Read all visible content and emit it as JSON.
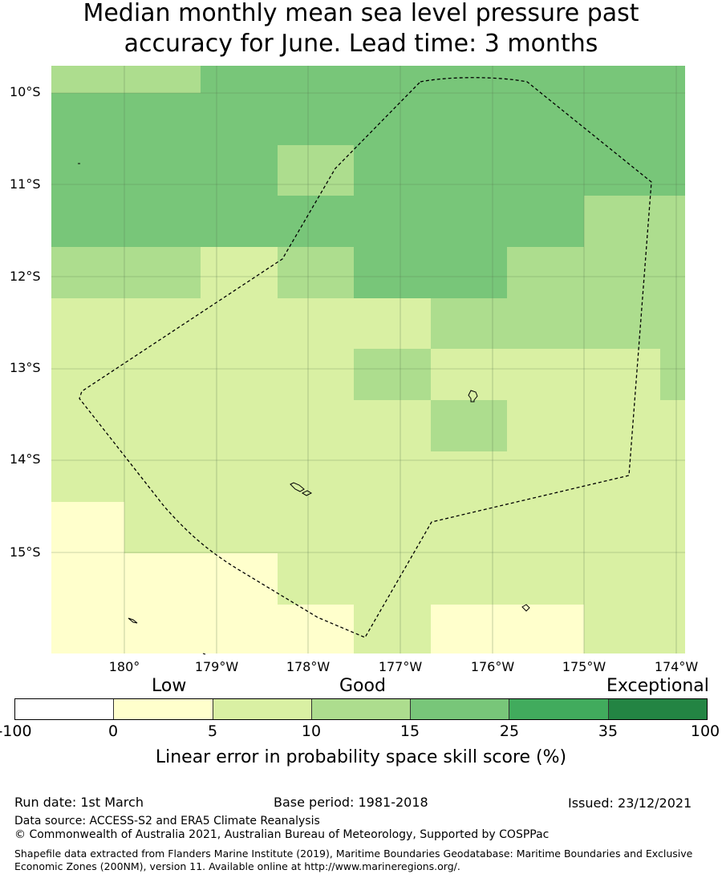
{
  "title": {
    "line1": "Median monthly mean sea level pressure past",
    "line2": "accuracy for June. Lead time: 3 months"
  },
  "map": {
    "lat_labels": [
      "10°S",
      "11°S",
      "12°S",
      "13°S",
      "14°S",
      "15°S"
    ],
    "lon_labels": [
      "180°",
      "179°W",
      "178°W",
      "177°W",
      "176°W",
      "175°W",
      "174°W"
    ],
    "boundary_style": "dashed",
    "skill_grid_columns": [
      "180.8°E–180°",
      "180°–179.2°W",
      "179.2°W–178.3°W",
      "178.3°W–177.5°W",
      "177.5°W–176.7°W",
      "176.7°W–175.8°W",
      "175.8°W–175°W",
      "175°W–174.3°W",
      "174.3°W–174.1°W"
    ],
    "skill_grid_categories": [
      [
        "10-15",
        "10-15",
        "15-25",
        "15-25",
        "15-25",
        "15-25",
        "15-25",
        "15-25",
        "15-25"
      ],
      [
        "15-25",
        "15-25",
        "15-25",
        "15-25",
        "15-25",
        "15-25",
        "15-25",
        "15-25",
        "15-25"
      ],
      [
        "15-25",
        "15-25",
        "15-25",
        "10-15",
        "15-25",
        "15-25",
        "15-25",
        "15-25",
        "15-25"
      ],
      [
        "15-25",
        "15-25",
        "15-25",
        "15-25",
        "15-25",
        "15-25",
        "15-25",
        "10-15",
        "10-15"
      ],
      [
        "10-15",
        "10-15",
        "5-10",
        "10-15",
        "15-25",
        "15-25",
        "10-15",
        "10-15",
        "10-15"
      ],
      [
        "5-10",
        "5-10",
        "5-10",
        "5-10",
        "5-10",
        "10-15",
        "10-15",
        "10-15",
        "10-15"
      ],
      [
        "5-10",
        "5-10",
        "5-10",
        "5-10",
        "10-15",
        "5-10",
        "5-10",
        "5-10",
        "10-15"
      ],
      [
        "5-10",
        "5-10",
        "5-10",
        "5-10",
        "5-10",
        "10-15",
        "5-10",
        "5-10",
        "5-10"
      ],
      [
        "5-10",
        "5-10",
        "5-10",
        "5-10",
        "5-10",
        "5-10",
        "5-10",
        "5-10",
        "5-10"
      ],
      [
        "0-5",
        "5-10",
        "5-10",
        "5-10",
        "5-10",
        "5-10",
        "5-10",
        "5-10",
        "5-10"
      ],
      [
        "0-5",
        "0-5",
        "0-5",
        "5-10",
        "5-10",
        "5-10",
        "5-10",
        "5-10",
        "5-10"
      ],
      [
        "0-5",
        "0-5",
        "0-5",
        "0-5",
        "5-10",
        "0-5",
        "0-5",
        "5-10",
        "5-10"
      ]
    ]
  },
  "legend": {
    "category_labels": [
      "Low",
      "Good",
      "Exceptional"
    ],
    "ticks": [
      "-100",
      "0",
      "5",
      "10",
      "15",
      "25",
      "35",
      "100"
    ],
    "segments": [
      {
        "range": "-100 to 0",
        "color": "#ffffff"
      },
      {
        "range": "0 to 5",
        "color": "#ffffcc"
      },
      {
        "range": "5 to 10",
        "color": "#d9f0a3"
      },
      {
        "range": "10 to 15",
        "color": "#addd8e"
      },
      {
        "range": "15 to 25",
        "color": "#78c679"
      },
      {
        "range": "25 to 35",
        "color": "#41ab5d"
      },
      {
        "range": "35 to 100",
        "color": "#238443"
      }
    ],
    "label": "Linear error in probability space skill score (%)"
  },
  "footer": {
    "run_date": "Run date: 1st March",
    "base_period": "Base period: 1981-2018",
    "issued": "Issued: 23/12/2021",
    "data_source": "Data source: ACCESS-S2 and ERA5 Climate Reanalysis",
    "copyright": "© Commonwealth of Australia 2021, Australian Bureau of Meteorology, Supported by COSPPac",
    "shapefile": "Shapefile data extracted from Flanders Marine Institute (2019), Maritime Boundaries Geodatabase: Maritime Boundaries and Exclusive Economic Zones (200NM), version 11. Available online at http://www.marineregions.org/."
  }
}
